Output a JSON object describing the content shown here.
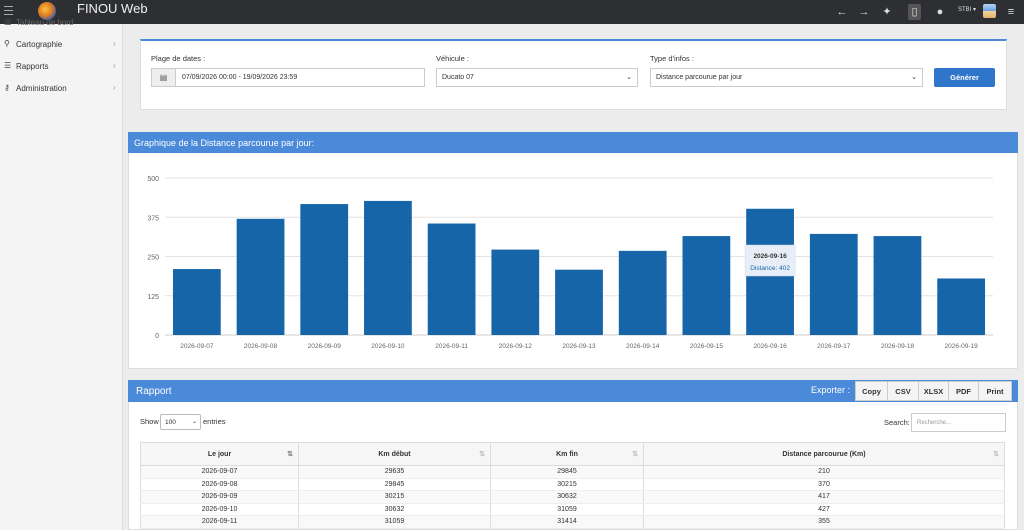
{
  "topbar": {
    "title": "FINOU Web",
    "user": "STBI ▾",
    "icons": [
      "back-arrow-icon",
      "forward-arrow-icon",
      "magic-wand-icon",
      "mobile-icon",
      "bell-icon",
      "user-avatar-icon",
      "menu-icon"
    ]
  },
  "sidebar": {
    "partial": "Tableau de bord",
    "items": [
      {
        "label": "Cartographie",
        "icon": "map-marker-icon"
      },
      {
        "label": "Rapports",
        "icon": "list-icon"
      },
      {
        "label": "Administration",
        "icon": "key-icon"
      }
    ]
  },
  "filters": {
    "date_label": "Plage de dates :",
    "date_value": "07/09/2026 00:00 - 19/09/2026 23:59",
    "vehicle_label": "Véhicule :",
    "vehicle_value": "Ducato 07",
    "type_label": "Type d'infos :",
    "type_value": "Distance parcourue par jour",
    "generate": "Générer"
  },
  "chart_title": "Graphique de la Distance parcourue par jour:",
  "chart_data": {
    "type": "bar",
    "categories": [
      "2026-09-07",
      "2026-09-08",
      "2026-09-09",
      "2026-09-10",
      "2026-09-11",
      "2026-09-12",
      "2026-09-13",
      "2026-09-14",
      "2026-09-15",
      "2026-09-16",
      "2026-09-17",
      "2026-09-18",
      "2026-09-19"
    ],
    "values": [
      210,
      370,
      417,
      427,
      355,
      272,
      208,
      268,
      315,
      402,
      322,
      315,
      180
    ],
    "ylim": [
      0,
      500
    ],
    "yticks": [
      0,
      125,
      250,
      375,
      500
    ],
    "color": "#1565a8",
    "grid": true,
    "tooltip": {
      "date": "2026-09-16",
      "text": "Distance: 402"
    }
  },
  "report": {
    "title": "Rapport",
    "export_label": "Exporter :",
    "export_buttons": [
      "Copy",
      "CSV",
      "XLSX",
      "PDF",
      "Print"
    ],
    "show_label": "Show",
    "entries_value": "100",
    "entries_label": "entries",
    "search_label": "Search:",
    "search_placeholder": "Recherche...",
    "columns": [
      "Le jour",
      "Km début",
      "Km fin",
      "Distance parcourue (Km)"
    ],
    "rows": [
      [
        "2026-09-07",
        "29635",
        "29845",
        "210"
      ],
      [
        "2026-09-08",
        "29845",
        "30215",
        "370"
      ],
      [
        "2026-09-09",
        "30215",
        "30632",
        "417"
      ],
      [
        "2026-09-10",
        "30632",
        "31059",
        "427"
      ],
      [
        "2026-09-11",
        "31059",
        "31414",
        "355"
      ]
    ]
  }
}
